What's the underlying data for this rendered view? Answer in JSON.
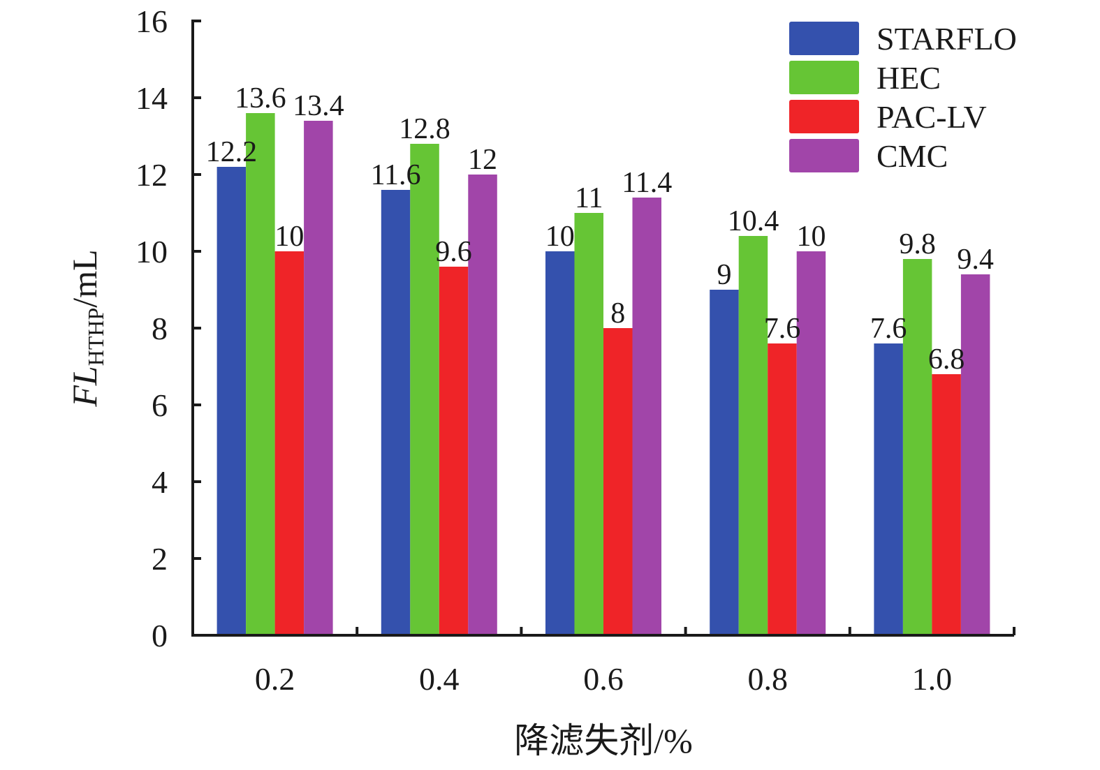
{
  "chart_data": {
    "type": "bar",
    "categories": [
      "0.2",
      "0.4",
      "0.6",
      "0.8",
      "1.0"
    ],
    "series": [
      {
        "name": "STARFLO",
        "color": "#3451ad",
        "values": [
          12.2,
          11.6,
          10,
          9,
          7.6
        ]
      },
      {
        "name": "HEC",
        "color": "#66c535",
        "values": [
          13.6,
          12.8,
          11,
          10.4,
          9.8
        ]
      },
      {
        "name": "PAC-LV",
        "color": "#ef2428",
        "values": [
          10,
          9.6,
          8,
          7.6,
          6.8
        ]
      },
      {
        "name": "CMC",
        "color": "#a145a9",
        "values": [
          13.4,
          12,
          11.4,
          10,
          9.4
        ]
      }
    ],
    "data_labels": [
      [
        "12.2",
        "11.6",
        "10",
        "9",
        "7.6"
      ],
      [
        "13.6",
        "12.8",
        "11",
        "10.4",
        "9.8"
      ],
      [
        "10",
        "9.6",
        "8",
        "7.6",
        "6.8"
      ],
      [
        "13.4",
        "12",
        "11.4",
        "10",
        "9.4"
      ]
    ],
    "xlabel": "降滤失剂/%",
    "ylabel": {
      "main": "FL",
      "sub": "HTHP",
      "unit": "/mL"
    },
    "ylim": [
      0,
      16
    ],
    "yticks": [
      "0",
      "2",
      "4",
      "6",
      "8",
      "10",
      "12",
      "14",
      "16"
    ],
    "legend": {
      "position": "top-right"
    },
    "grid": false
  }
}
